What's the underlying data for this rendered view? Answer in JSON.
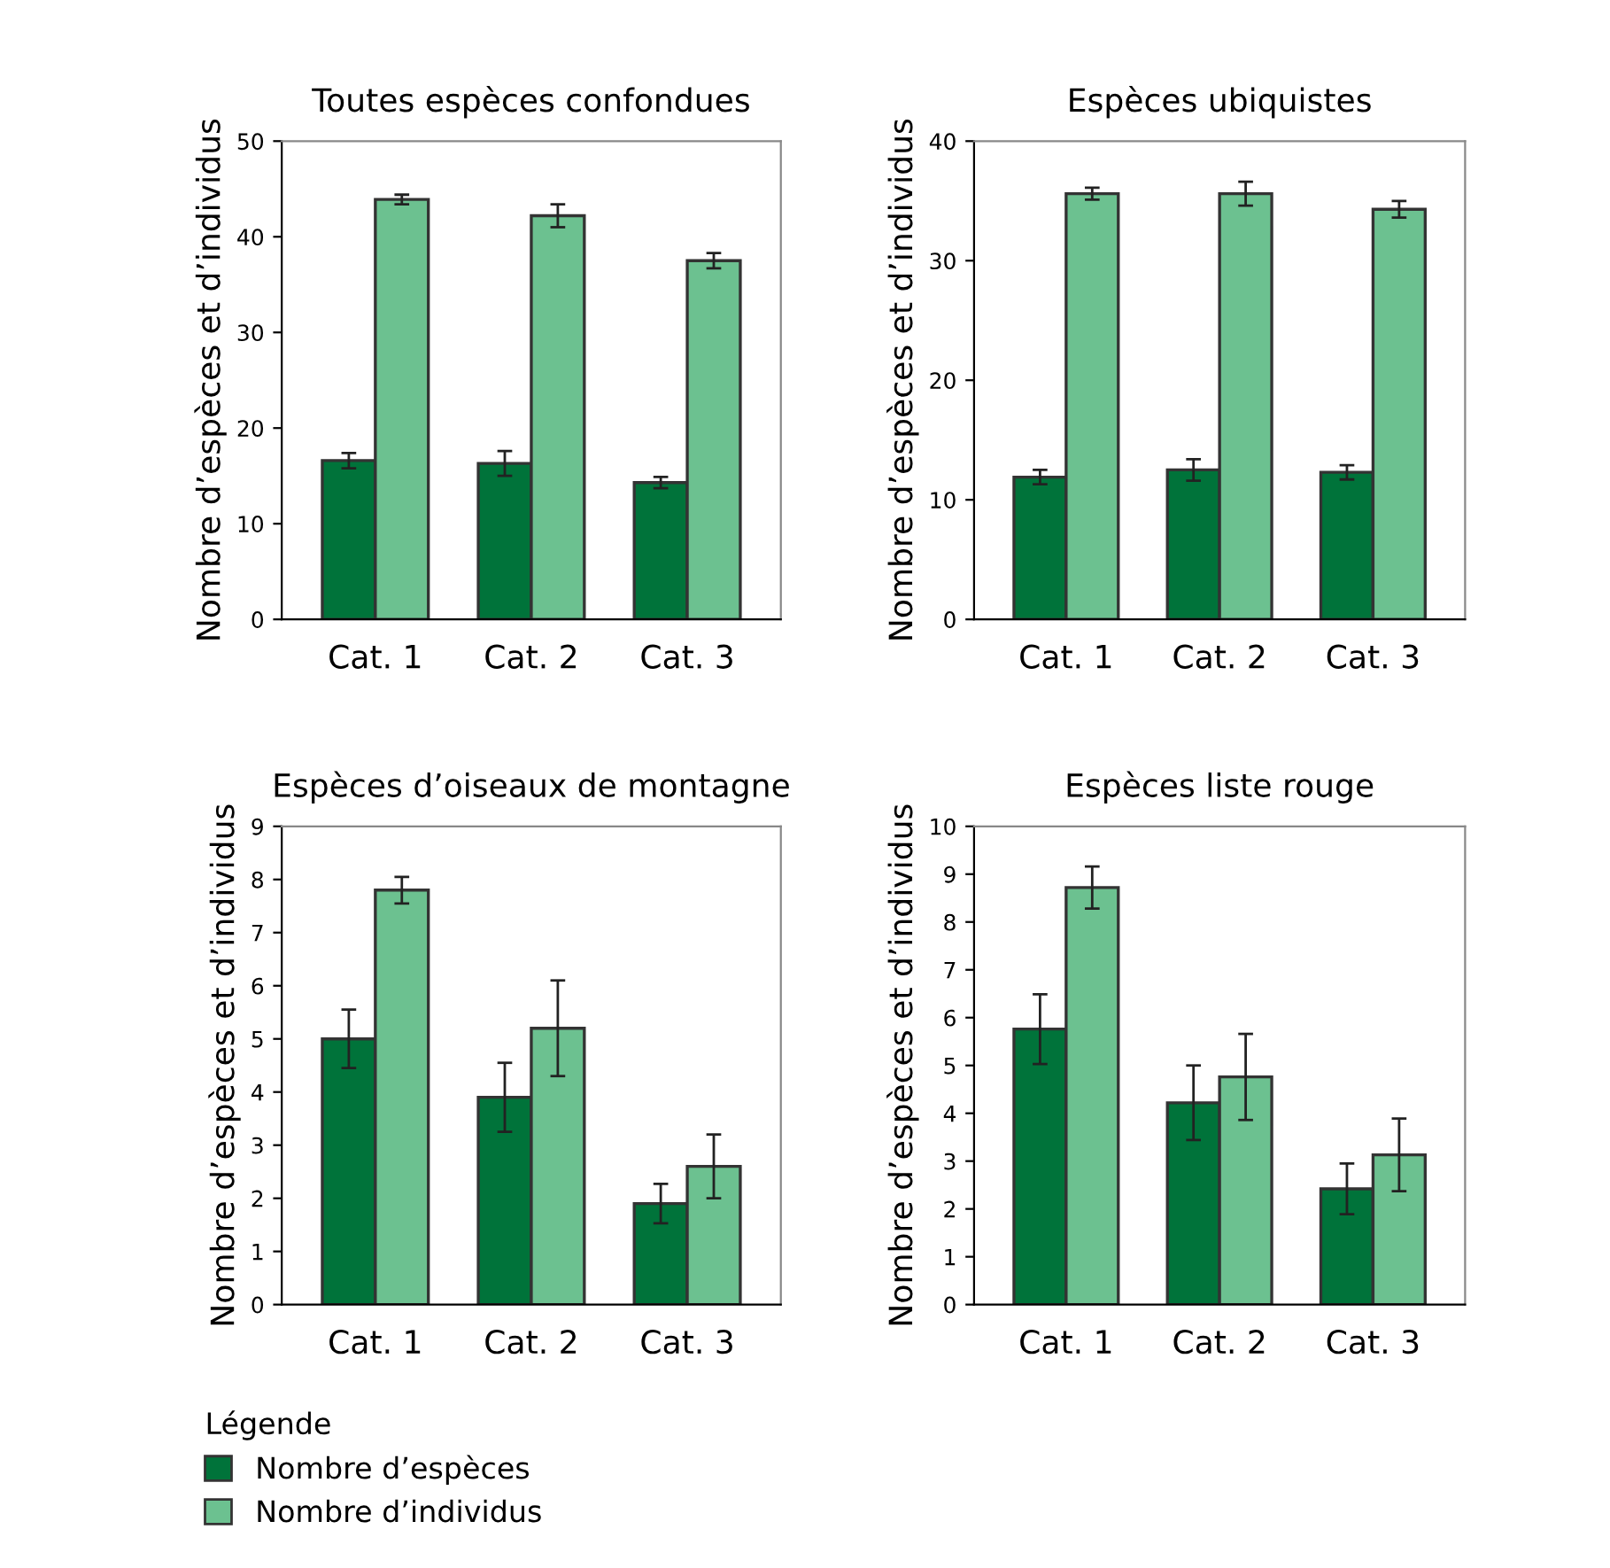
{
  "chart_data": [
    {
      "type": "bar",
      "title": "Toutes espèces confondues",
      "ylabel": "Nombre d’espèces et d’individus",
      "categories": [
        "Cat. 1",
        "Cat. 2",
        "Cat. 3"
      ],
      "ylim": [
        0,
        50
      ],
      "yticks": [
        0,
        10,
        20,
        30,
        40,
        50
      ],
      "grid": false,
      "legend": "bottom",
      "legend_title": "Légende",
      "series": [
        {
          "name": "Nombre d’espèces",
          "color": "#00733a",
          "values": [
            16.6,
            16.3,
            14.3
          ],
          "errors": [
            0.8,
            1.3,
            0.6
          ]
        },
        {
          "name": "Nombre d’individus",
          "color": "#6cc190",
          "values": [
            43.9,
            42.2,
            37.5
          ],
          "errors": [
            0.5,
            1.2,
            0.8
          ]
        }
      ]
    },
    {
      "type": "bar",
      "title": "Espèces ubiquistes",
      "ylabel": "Nombre d’espèces et d’individus",
      "categories": [
        "Cat. 1",
        "Cat. 2",
        "Cat. 3"
      ],
      "ylim": [
        0,
        40
      ],
      "yticks": [
        0,
        10,
        20,
        30,
        40
      ],
      "grid": false,
      "series": [
        {
          "color": "#00733a",
          "values": [
            11.9,
            12.5,
            12.3
          ],
          "errors": [
            0.6,
            0.9,
            0.6
          ]
        },
        {
          "color": "#6cc190",
          "values": [
            35.6,
            35.6,
            34.3
          ],
          "errors": [
            0.5,
            1.0,
            0.7
          ]
        }
      ]
    },
    {
      "type": "bar",
      "title": "Espèces d’oiseaux de montagne",
      "ylabel": "Nombre d’espèces et d’individus",
      "categories": [
        "Cat. 1",
        "Cat. 2",
        "Cat. 3"
      ],
      "ylim": [
        0,
        9
      ],
      "yticks": [
        0,
        1,
        2,
        3,
        4,
        5,
        6,
        7,
        8,
        9
      ],
      "grid": false,
      "series": [
        {
          "color": "#00733a",
          "values": [
            5.0,
            3.9,
            1.9
          ],
          "errors": [
            0.55,
            0.65,
            0.37
          ]
        },
        {
          "color": "#6cc190",
          "values": [
            7.8,
            5.2,
            2.6
          ],
          "errors": [
            0.25,
            0.9,
            0.6
          ]
        }
      ]
    },
    {
      "type": "bar",
      "title": "Espèces liste rouge",
      "ylabel": "Nombre d’espèces et d’individus",
      "categories": [
        "Cat. 1",
        "Cat. 2",
        "Cat. 3"
      ],
      "ylim": [
        0,
        10
      ],
      "yticks": [
        0,
        1,
        2,
        3,
        4,
        5,
        6,
        7,
        8,
        9,
        10
      ],
      "grid": false,
      "series": [
        {
          "color": "#00733a",
          "values": [
            5.76,
            4.22,
            2.42
          ],
          "errors": [
            0.73,
            0.78,
            0.53
          ]
        },
        {
          "color": "#6cc190",
          "values": [
            8.72,
            4.76,
            3.13
          ],
          "errors": [
            0.44,
            0.9,
            0.76
          ]
        }
      ]
    }
  ]
}
